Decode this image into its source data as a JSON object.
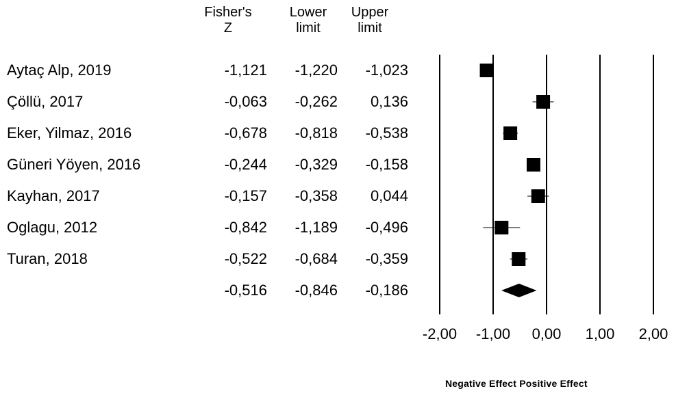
{
  "headers": {
    "fisher_z": [
      "Fisher's",
      "Z"
    ],
    "lower": [
      "Lower",
      "limit"
    ],
    "upper": [
      "Upper",
      "limit"
    ]
  },
  "chart_data": {
    "type": "forest",
    "rows": [
      {
        "study": "Aytaç Alp, 2019",
        "z": "-1,121",
        "lower": "-1,220",
        "upper": "-1,023",
        "zv": -1.121,
        "lv": -1.22,
        "uv": -1.023,
        "weight": 1.0
      },
      {
        "study": "Çöllü, 2017",
        "z": "-0,063",
        "lower": "-0,262",
        "upper": "0,136",
        "zv": -0.063,
        "lv": -0.262,
        "uv": 0.136,
        "weight": 1.0
      },
      {
        "study": "Eker, Yilmaz, 2016",
        "z": "-0,678",
        "lower": "-0,818",
        "upper": "-0,538",
        "zv": -0.678,
        "lv": -0.818,
        "uv": -0.538,
        "weight": 1.0
      },
      {
        "study": "Güneri Yöyen, 2016",
        "z": "-0,244",
        "lower": "-0,329",
        "upper": "-0,158",
        "zv": -0.244,
        "lv": -0.329,
        "uv": -0.158,
        "weight": 1.0
      },
      {
        "study": "Kayhan, 2017",
        "z": "-0,157",
        "lower": "-0,358",
        "upper": "0,044",
        "zv": -0.157,
        "lv": -0.358,
        "uv": 0.044,
        "weight": 1.0
      },
      {
        "study": "Oglagu, 2012",
        "z": "-0,842",
        "lower": "-1,189",
        "upper": "-0,496",
        "zv": -0.842,
        "lv": -1.189,
        "uv": -0.496,
        "weight": 1.0
      },
      {
        "study": "Turan, 2018",
        "z": "-0,522",
        "lower": "-0,684",
        "upper": "-0,359",
        "zv": -0.522,
        "lv": -0.684,
        "uv": -0.359,
        "weight": 1.0
      }
    ],
    "summary": {
      "z": "-0,516",
      "lower": "-0,846",
      "upper": "-0,186",
      "zv": -0.516,
      "lv": -0.846,
      "uv": -0.186
    },
    "x_ticks": [
      "-2,00",
      "-1,00",
      "0,00",
      "1,00",
      "2,00"
    ],
    "x_tick_values": [
      -2,
      -1,
      0,
      1,
      2
    ],
    "xlim": [
      -2,
      2
    ],
    "axis_note": "Negative Effect Positive Effect"
  }
}
